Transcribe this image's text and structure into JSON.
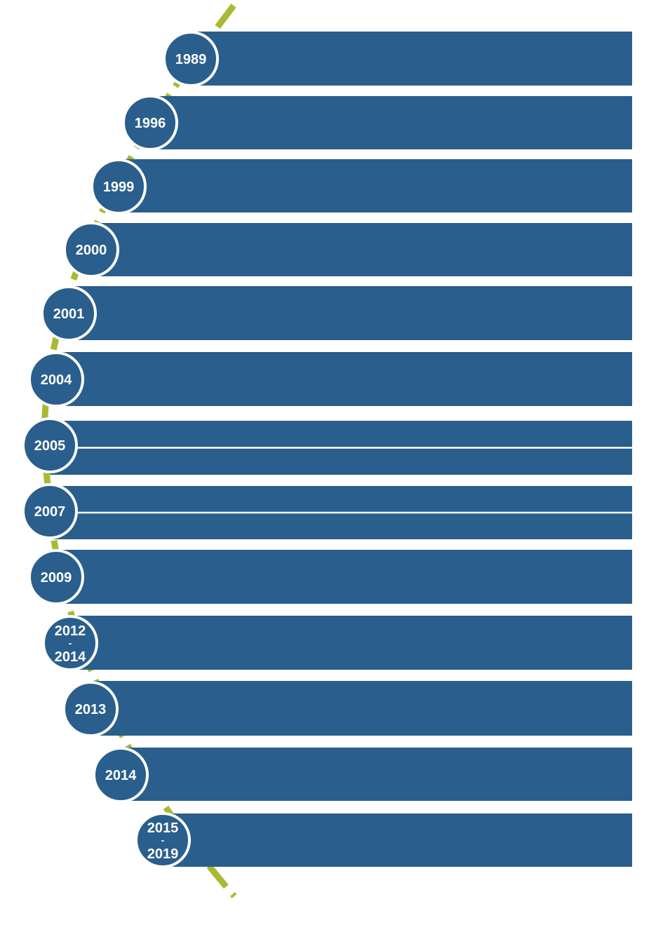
{
  "colors": {
    "bar": "#2a5e8c",
    "badge": "#2a5e8c",
    "accent": "#a8b933",
    "text": "#ffffff"
  },
  "timeline": {
    "entries": [
      {
        "lines": [
          "1989"
        ],
        "split": false
      },
      {
        "lines": [
          "1996"
        ],
        "split": false
      },
      {
        "lines": [
          "1999"
        ],
        "split": false
      },
      {
        "lines": [
          "2000"
        ],
        "split": false
      },
      {
        "lines": [
          "2001"
        ],
        "split": false
      },
      {
        "lines": [
          "2004"
        ],
        "split": false
      },
      {
        "lines": [
          "2005"
        ],
        "split": true
      },
      {
        "lines": [
          "2007"
        ],
        "split": true
      },
      {
        "lines": [
          "2009"
        ],
        "split": false
      },
      {
        "lines": [
          "2012",
          "-",
          "2014"
        ],
        "split": false
      },
      {
        "lines": [
          "2013"
        ],
        "split": false
      },
      {
        "lines": [
          "2014"
        ],
        "split": false
      },
      {
        "lines": [
          "2015",
          "-",
          "2019"
        ],
        "split": false
      }
    ]
  }
}
